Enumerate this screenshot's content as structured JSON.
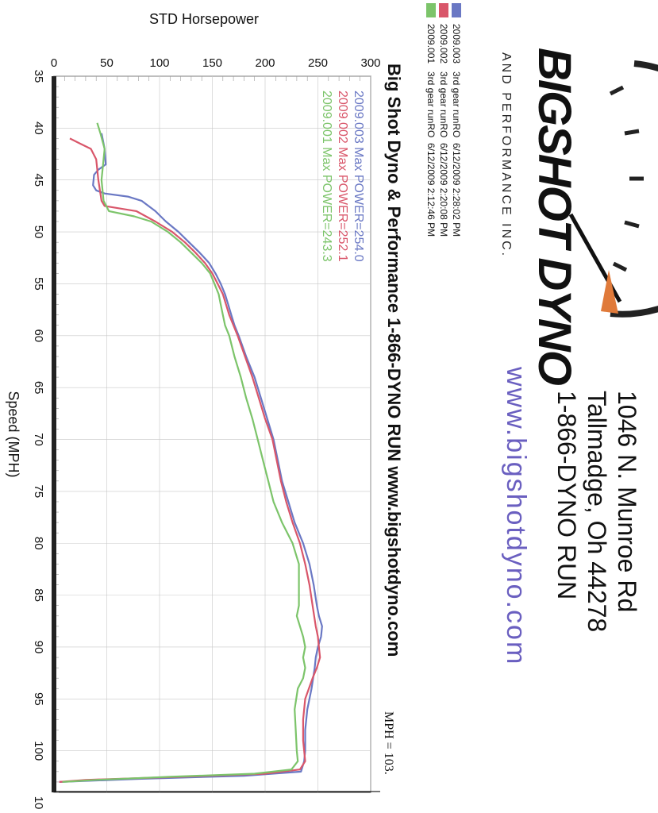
{
  "address": {
    "line1": "1046 N. Munroe Rd",
    "line2": "Tallmadge, Oh 44278",
    "line3": "1-866-DYNO RUN"
  },
  "website": "www.bigshotdyno.com",
  "logo": {
    "name": "BIGSHOT DYNO",
    "tagline": "AND PERFORMANCE INC."
  },
  "runs": [
    {
      "id": "2009.003",
      "desc": "3rd gear runRO",
      "datetime": "6/12/2009 2:28:02 PM",
      "color": "#6a78c4"
    },
    {
      "id": "2009.002",
      "desc": "3rd gear runRO",
      "datetime": "6/12/2009 2:20:08 PM",
      "color": "#d9566a"
    },
    {
      "id": "2009.001",
      "desc": "3rd gear runRO",
      "datetime": "6/12/2009 2:12:46 PM",
      "color": "#7cc46a"
    }
  ],
  "legend": [
    {
      "text": "2009.003  Max POWER=254.0",
      "color": "#6a78c4"
    },
    {
      "text": "2009.002  Max POWER=252.1",
      "color": "#d9566a"
    },
    {
      "text": "2009.001  Max POWER=243.3",
      "color": "#7cc46a"
    }
  ],
  "banner": "Big Shot Dyno & Performance 1-866-DYNO RUN www.bigshotdyno.com",
  "cursor_label": "MPH = 103.",
  "chart_data": {
    "type": "line",
    "ylabel": "STD Horsepower",
    "xlabel": "Speed (MPH)",
    "xlim": [
      35,
      104
    ],
    "ylim": [
      0,
      300
    ],
    "x_ticks": [
      "35",
      "40",
      "45",
      "50",
      "55",
      "60",
      "65",
      "70",
      "75",
      "80",
      "85",
      "90",
      "95",
      "100",
      "10"
    ],
    "y_ticks": [
      "0",
      "50",
      "100",
      "150",
      "200",
      "250",
      "300"
    ],
    "cursor_x": 103,
    "series": [
      {
        "name": "2009.003",
        "color": "#6a78c4",
        "points": [
          [
            40.5,
            45
          ],
          [
            42,
            48
          ],
          [
            43.5,
            49
          ],
          [
            44,
            42
          ],
          [
            44.5,
            38
          ],
          [
            45.5,
            37
          ],
          [
            46,
            40
          ],
          [
            46.3,
            48
          ],
          [
            46.6,
            70
          ],
          [
            47,
            83
          ],
          [
            48,
            96
          ],
          [
            49,
            106
          ],
          [
            50,
            118
          ],
          [
            51,
            128
          ],
          [
            52,
            138
          ],
          [
            53,
            147
          ],
          [
            54,
            153
          ],
          [
            55,
            158
          ],
          [
            56,
            162
          ],
          [
            57,
            165
          ],
          [
            58,
            168
          ],
          [
            59,
            171
          ],
          [
            60,
            175
          ],
          [
            62,
            182
          ],
          [
            64,
            190
          ],
          [
            66,
            196
          ],
          [
            68,
            202
          ],
          [
            70,
            208
          ],
          [
            72,
            212
          ],
          [
            74,
            216
          ],
          [
            76,
            222
          ],
          [
            78,
            228
          ],
          [
            80,
            236
          ],
          [
            82,
            242
          ],
          [
            84,
            246
          ],
          [
            86,
            249
          ],
          [
            87,
            251
          ],
          [
            88,
            254
          ],
          [
            89,
            253
          ],
          [
            90,
            250
          ],
          [
            91,
            248
          ],
          [
            92,
            247
          ],
          [
            94,
            244
          ],
          [
            96,
            240
          ],
          [
            98,
            238
          ],
          [
            100,
            238
          ],
          [
            101,
            237
          ],
          [
            102,
            234
          ],
          [
            102.4,
            180
          ],
          [
            102.7,
            80
          ],
          [
            103,
            5
          ]
        ]
      },
      {
        "name": "2009.002",
        "color": "#d9566a",
        "points": [
          [
            41,
            15
          ],
          [
            41.5,
            25
          ],
          [
            42,
            35
          ],
          [
            43,
            40
          ],
          [
            45,
            42
          ],
          [
            47,
            45
          ],
          [
            47.5,
            48
          ],
          [
            48,
            78
          ],
          [
            49,
            96
          ],
          [
            50,
            112
          ],
          [
            51,
            124
          ],
          [
            52,
            134
          ],
          [
            53,
            143
          ],
          [
            54,
            150
          ],
          [
            55,
            155
          ],
          [
            56,
            160
          ],
          [
            57,
            163
          ],
          [
            58,
            166
          ],
          [
            59,
            170
          ],
          [
            60,
            174
          ],
          [
            62,
            181
          ],
          [
            64,
            188
          ],
          [
            66,
            194
          ],
          [
            68,
            200
          ],
          [
            70,
            207
          ],
          [
            72,
            211
          ],
          [
            74,
            215
          ],
          [
            76,
            220
          ],
          [
            78,
            226
          ],
          [
            80,
            233
          ],
          [
            82,
            238
          ],
          [
            84,
            242
          ],
          [
            86,
            245
          ],
          [
            88,
            248
          ],
          [
            89,
            250
          ],
          [
            90,
            251
          ],
          [
            91,
            252
          ],
          [
            92,
            249
          ],
          [
            93,
            245
          ],
          [
            95,
            238
          ],
          [
            97,
            236
          ],
          [
            99,
            236
          ],
          [
            100,
            237
          ],
          [
            101,
            238
          ],
          [
            101.8,
            233
          ],
          [
            102.2,
            200
          ],
          [
            102.5,
            120
          ],
          [
            102.8,
            30
          ],
          [
            103,
            5
          ]
        ]
      },
      {
        "name": "2009.001",
        "color": "#7cc46a",
        "points": [
          [
            39.5,
            41
          ],
          [
            40.5,
            44
          ],
          [
            42,
            48
          ],
          [
            43,
            47
          ],
          [
            45,
            45
          ],
          [
            47,
            47
          ],
          [
            48,
            52
          ],
          [
            48.5,
            76
          ],
          [
            49,
            92
          ],
          [
            50,
            108
          ],
          [
            51,
            120
          ],
          [
            52,
            130
          ],
          [
            53,
            140
          ],
          [
            54,
            148
          ],
          [
            55,
            152
          ],
          [
            56,
            156
          ],
          [
            57,
            158
          ],
          [
            58,
            160
          ],
          [
            59,
            162
          ],
          [
            60,
            166
          ],
          [
            62,
            171
          ],
          [
            64,
            177
          ],
          [
            66,
            182
          ],
          [
            68,
            188
          ],
          [
            70,
            193
          ],
          [
            72,
            198
          ],
          [
            74,
            203
          ],
          [
            76,
            208
          ],
          [
            78,
            216
          ],
          [
            80,
            226
          ],
          [
            82,
            232
          ],
          [
            84,
            232
          ],
          [
            86,
            232
          ],
          [
            87,
            230
          ],
          [
            88,
            233
          ],
          [
            89,
            236
          ],
          [
            90,
            238
          ],
          [
            91,
            236
          ],
          [
            92,
            238
          ],
          [
            93,
            236
          ],
          [
            94,
            231
          ],
          [
            96,
            228
          ],
          [
            98,
            229
          ],
          [
            100,
            230
          ],
          [
            101,
            231
          ],
          [
            101.8,
            225
          ],
          [
            102.2,
            190
          ],
          [
            102.5,
            110
          ],
          [
            102.8,
            40
          ],
          [
            103,
            8
          ]
        ]
      }
    ]
  }
}
